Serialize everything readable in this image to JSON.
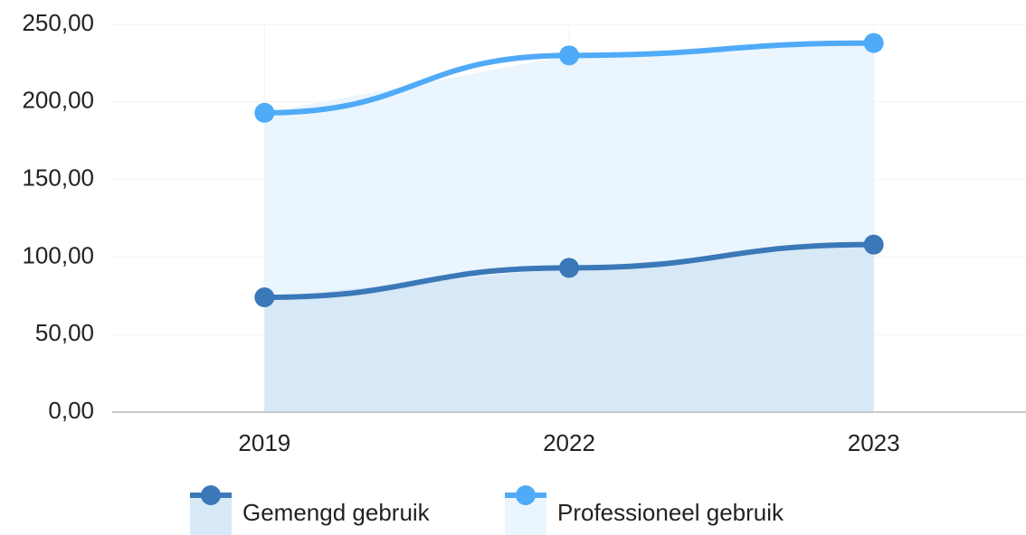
{
  "chart_data": {
    "type": "line",
    "area": true,
    "categories": [
      "2019",
      "2022",
      "2023"
    ],
    "series": [
      {
        "name": "Gemengd gebruik",
        "color": "#3a78b8",
        "fill": "#d7e8f6",
        "values": [
          74,
          93,
          108
        ]
      },
      {
        "name": "Professioneel gebruik",
        "color": "#4fabf7",
        "fill": "#eaf5fd",
        "values": [
          193,
          230,
          238
        ]
      }
    ],
    "ylim": [
      0,
      250
    ],
    "yticks": [
      {
        "value": 0,
        "label": "0,00"
      },
      {
        "value": 50,
        "label": "50,00"
      },
      {
        "value": 100,
        "label": "100,00"
      },
      {
        "value": 150,
        "label": "150,00"
      },
      {
        "value": 200,
        "label": "200,00"
      },
      {
        "value": 250,
        "label": "250,00"
      }
    ],
    "grid": true
  }
}
